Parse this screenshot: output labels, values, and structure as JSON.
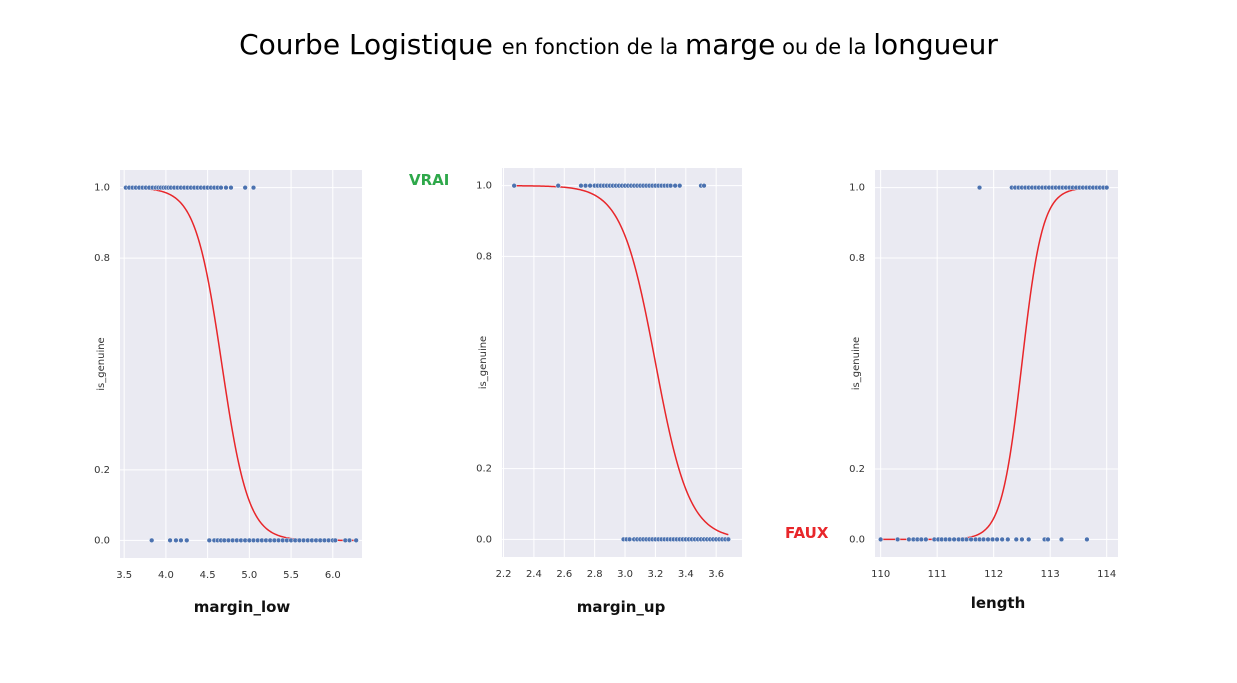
{
  "title": {
    "part1": "Courbe Logistique ",
    "part2": "en fonction de la ",
    "part3": "marge",
    "part4": " ou de la ",
    "part5": "longueur"
  },
  "labels": {
    "vrai": "VRAI",
    "faux": "FAUX"
  },
  "colors": {
    "background": "#eaeaf2",
    "grid": "#ffffff",
    "points": "#4c72b0",
    "curve": "#e8262a",
    "vrai": "#2ea84a",
    "faux": "#e8262a"
  },
  "chart_data": [
    {
      "type": "scatter",
      "xlabel": "margin_low",
      "ylabel": "is_genuine",
      "xlim": [
        3.45,
        6.35
      ],
      "ylim": [
        -0.05,
        1.05
      ],
      "xticks": [
        "3.5",
        "4.0",
        "4.5",
        "5.0",
        "5.5",
        "6.0"
      ],
      "yticks": [
        "0.0",
        "0.2",
        "0.8",
        "1.0"
      ],
      "logistic": {
        "midpoint": 4.67,
        "slope": -6.3
      },
      "curve_range": [
        3.52,
        6.28
      ],
      "series": [
        {
          "y": 1,
          "x": [
            3.52,
            3.56,
            3.6,
            3.64,
            3.68,
            3.72,
            3.76,
            3.8,
            3.84,
            3.88,
            3.91,
            3.94,
            3.97,
            4.0,
            4.03,
            4.06,
            4.1,
            4.14,
            4.18,
            4.22,
            4.26,
            4.3,
            4.34,
            4.38,
            4.42,
            4.46,
            4.5,
            4.54,
            4.58,
            4.62,
            4.66,
            4.72,
            4.78,
            4.95,
            5.05
          ]
        },
        {
          "y": 0,
          "x": [
            3.83,
            4.05,
            4.12,
            4.18,
            4.25,
            4.52,
            4.58,
            4.62,
            4.66,
            4.7,
            4.75,
            4.8,
            4.85,
            4.9,
            4.95,
            5.0,
            5.05,
            5.1,
            5.15,
            5.2,
            5.25,
            5.3,
            5.35,
            5.4,
            5.45,
            5.5,
            5.55,
            5.6,
            5.65,
            5.7,
            5.75,
            5.8,
            5.85,
            5.9,
            5.95,
            6.0,
            6.03,
            6.15,
            6.2,
            6.28
          ]
        }
      ]
    },
    {
      "type": "scatter",
      "xlabel": "margin_up",
      "ylabel": "is_genuine",
      "xlim": [
        2.19,
        3.77
      ],
      "ylim": [
        -0.05,
        1.05
      ],
      "xticks": [
        "2.2",
        "2.4",
        "2.6",
        "2.8",
        "3.0",
        "3.2",
        "3.4",
        "3.6"
      ],
      "yticks": [
        "0.0",
        "0.2",
        "0.8",
        "1.0"
      ],
      "logistic": {
        "midpoint": 3.2,
        "slope": -9.0
      },
      "curve_range": [
        2.27,
        3.68
      ],
      "series": [
        {
          "y": 1,
          "x": [
            2.27,
            2.56,
            2.71,
            2.74,
            2.77,
            2.8,
            2.82,
            2.84,
            2.86,
            2.88,
            2.9,
            2.92,
            2.94,
            2.96,
            2.98,
            3.0,
            3.02,
            3.04,
            3.06,
            3.08,
            3.1,
            3.12,
            3.14,
            3.16,
            3.18,
            3.2,
            3.22,
            3.24,
            3.26,
            3.28,
            3.3,
            3.33,
            3.36,
            3.5,
            3.52
          ]
        },
        {
          "y": 0,
          "x": [
            2.99,
            3.01,
            3.03,
            3.06,
            3.08,
            3.1,
            3.12,
            3.14,
            3.16,
            3.18,
            3.2,
            3.22,
            3.24,
            3.26,
            3.28,
            3.3,
            3.32,
            3.34,
            3.36,
            3.38,
            3.4,
            3.42,
            3.44,
            3.46,
            3.48,
            3.5,
            3.52,
            3.54,
            3.56,
            3.58,
            3.6,
            3.62,
            3.64,
            3.66,
            3.68
          ]
        }
      ]
    },
    {
      "type": "scatter",
      "xlabel": "length",
      "ylabel": "is_genuine",
      "xlim": [
        109.9,
        114.2
      ],
      "ylim": [
        -0.05,
        1.05
      ],
      "xticks": [
        "110",
        "111",
        "112",
        "113",
        "114"
      ],
      "yticks": [
        "0.0",
        "0.2",
        "0.8",
        "1.0"
      ],
      "logistic": {
        "midpoint": 112.5,
        "slope": 5.5
      },
      "curve_range": [
        109.98,
        114.0
      ],
      "series": [
        {
          "y": 1,
          "x": [
            111.75,
            112.32,
            112.38,
            112.44,
            112.5,
            112.56,
            112.62,
            112.68,
            112.74,
            112.8,
            112.86,
            112.92,
            112.98,
            113.04,
            113.1,
            113.16,
            113.22,
            113.28,
            113.34,
            113.4,
            113.46,
            113.52,
            113.58,
            113.64,
            113.7,
            113.76,
            113.82,
            113.88,
            113.94,
            114.0
          ]
        },
        {
          "y": 0,
          "x": [
            110.0,
            110.3,
            110.5,
            110.58,
            110.65,
            110.72,
            110.8,
            110.95,
            111.02,
            111.08,
            111.15,
            111.22,
            111.3,
            111.38,
            111.45,
            111.52,
            111.6,
            111.68,
            111.75,
            111.82,
            111.9,
            111.98,
            112.06,
            112.15,
            112.25,
            112.4,
            112.5,
            112.62,
            112.9,
            112.96,
            113.2,
            113.65
          ]
        }
      ]
    }
  ]
}
